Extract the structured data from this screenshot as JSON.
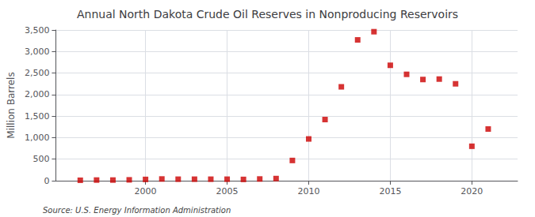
{
  "chart_data": {
    "type": "scatter",
    "title": "Annual North Dakota Crude Oil Reserves in Nonproducing Reservoirs",
    "ylabel": "Million Barrels",
    "source": "Source: U.S. Energy Information Administration",
    "x": [
      1996,
      1997,
      1998,
      1999,
      2000,
      2001,
      2002,
      2003,
      2004,
      2005,
      2006,
      2007,
      2008,
      2009,
      2010,
      2011,
      2012,
      2013,
      2014,
      2015,
      2016,
      2017,
      2018,
      2019,
      2020,
      2021
    ],
    "values": [
      10,
      15,
      15,
      20,
      30,
      40,
      35,
      35,
      35,
      35,
      30,
      40,
      50,
      470,
      970,
      1420,
      2180,
      3270,
      3460,
      2680,
      2470,
      2350,
      2360,
      2250,
      800,
      1200
    ],
    "color": "#cc0000",
    "marker": "square",
    "xlim": [
      1994.5,
      2022.8
    ],
    "xticks": [
      2000,
      2005,
      2010,
      2015,
      2020
    ],
    "ylim": [
      0,
      3500
    ],
    "yticks": [
      0,
      500,
      {
        "value": 1000,
        "label": "1,000"
      },
      {
        "value": 1500,
        "label": "1,500"
      },
      {
        "value": 2000,
        "label": "2,000"
      },
      {
        "value": 2500,
        "label": "2,500"
      },
      {
        "value": 3000,
        "label": "3,000"
      },
      {
        "value": 3500,
        "label": "3,500"
      }
    ],
    "grid": true
  }
}
